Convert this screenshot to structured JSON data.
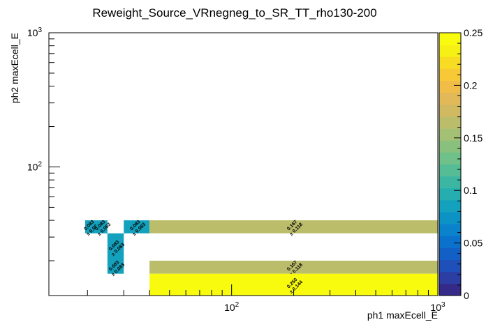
{
  "chart_data": {
    "type": "heatmap",
    "title": "Reweight_Source_VRnegneg_to_SR_TT_rho130-200",
    "xlabel": "ph1 maxEcell_E",
    "ylabel": "ph2 maxEcell_E",
    "x_scale": "log",
    "y_scale": "log",
    "xlim": [
      13,
      1000
    ],
    "ylim": [
      11,
      1000
    ],
    "x_tick_labels": [
      {
        "base": "10",
        "exp": "2",
        "value": 100
      },
      {
        "base": "10",
        "exp": "3",
        "value": 1000
      }
    ],
    "y_tick_labels": [
      {
        "base": "10",
        "exp": "2",
        "value": 100
      },
      {
        "base": "10",
        "exp": "3",
        "value": 1000
      }
    ],
    "colorbar": {
      "range": [
        0,
        0.25
      ],
      "tick_labels": [
        "0",
        "0.05",
        "0.1",
        "0.15",
        "0.2",
        "0.25"
      ],
      "palette": [
        "#352a87",
        "#2c3ea3",
        "#1f4fb8",
        "#1260c6",
        "#0a71cd",
        "#0a82cc",
        "#0d92c6",
        "#14a1bd",
        "#25adb0",
        "#3bb6a2",
        "#55bc95",
        "#6fc089",
        "#8ac07e",
        "#a3c074",
        "#bbbd6b",
        "#d1b962",
        "#e2b958",
        "#f0bd48",
        "#f7c937",
        "#f8dc24",
        "#f7f014",
        "#f9fb0e"
      ]
    },
    "cells": [
      {
        "x0": 19.5,
        "x1": 22.0,
        "y0": 32,
        "y1": 40,
        "value": 0.083,
        "label": "0.083",
        "error": "± 0.083"
      },
      {
        "x0": 22.0,
        "x1": 25.0,
        "y0": 32,
        "y1": 40,
        "value": 0.083,
        "label": "0.083",
        "error": "± 0.083"
      },
      {
        "x0": 30.0,
        "x1": 40.0,
        "y0": 32,
        "y1": 40,
        "value": 0.083,
        "label": "0.083",
        "error": "± 0.083"
      },
      {
        "x0": 25.0,
        "x1": 30.0,
        "y0": 20,
        "y1": 32,
        "value": 0.083,
        "label": "0.083",
        "error": "± 0.083"
      },
      {
        "x0": 25.0,
        "x1": 30.0,
        "y0": 16,
        "y1": 20,
        "value": 0.083,
        "label": "0.083",
        "error": "± 0.083"
      },
      {
        "x0": 40.0,
        "x1": 1000,
        "y0": 32,
        "y1": 40,
        "value": 0.167,
        "label": "0.167",
        "error": "± 0.118"
      },
      {
        "x0": 40.0,
        "x1": 1000,
        "y0": 16,
        "y1": 20,
        "value": 0.167,
        "label": "0.167",
        "error": "± 0.118"
      },
      {
        "x0": 40.0,
        "x1": 1000,
        "y0": 11,
        "y1": 16,
        "value": 0.25,
        "label": "0.250",
        "error": "± 0.144"
      }
    ],
    "grid": false,
    "legend": "colorbar-right"
  }
}
